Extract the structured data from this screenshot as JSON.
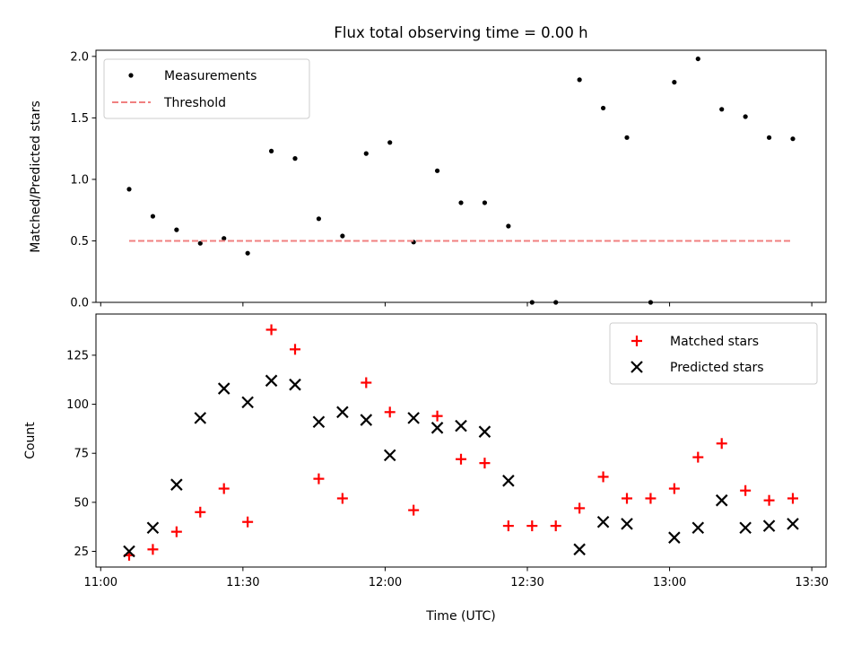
{
  "chart_data": {
    "title": "Flux total observing time = 0.00 h",
    "xlabel": "Time (UTC)",
    "x_tick_labels": [
      "11:00",
      "11:30",
      "12:00",
      "12:30",
      "13:00",
      "13:30"
    ],
    "x_tick_minutes": [
      0,
      30,
      60,
      90,
      120,
      150
    ],
    "xlim_minutes_after_1100": [
      -1,
      153
    ],
    "sample_times": [
      "11:06",
      "11:11",
      "11:16",
      "11:21",
      "11:26",
      "11:31",
      "11:36",
      "11:41",
      "11:46",
      "11:51",
      "11:56",
      "12:01",
      "12:06",
      "12:11",
      "12:16",
      "12:21",
      "12:26",
      "12:31",
      "12:36",
      "12:41",
      "12:46",
      "12:51",
      "12:56",
      "13:01",
      "13:06",
      "13:11",
      "13:16",
      "13:21",
      "13:26"
    ],
    "panels": [
      {
        "type": "scatter",
        "ylabel": "Matched/Predicted stars",
        "ylim": [
          0,
          2.05
        ],
        "yticks": [
          0.0,
          0.5,
          1.0,
          1.5,
          2.0
        ],
        "ytick_labels": [
          "0.0",
          "0.5",
          "1.0",
          "1.5",
          "2.0"
        ],
        "legend_position": "upper-left",
        "series": [
          {
            "name": "Measurements",
            "marker": "dot",
            "color": "#000000",
            "values": [
              0.92,
              0.7,
              0.59,
              0.48,
              0.52,
              0.4,
              1.23,
              1.17,
              0.68,
              0.54,
              1.21,
              1.3,
              0.49,
              1.07,
              0.81,
              0.81,
              0.62,
              0.0,
              0.0,
              1.81,
              1.58,
              1.34,
              0.0,
              1.79,
              1.98,
              1.57,
              1.51,
              1.34,
              1.33
            ]
          },
          {
            "name": "Threshold",
            "marker": "dashed-line",
            "color": "#f08080",
            "value": 0.5,
            "x_range": [
              "11:06",
              "13:26"
            ]
          }
        ]
      },
      {
        "type": "scatter",
        "ylabel": "Count",
        "ylim": [
          17,
          146
        ],
        "yticks": [
          25,
          50,
          75,
          100,
          125
        ],
        "ytick_labels": [
          "25",
          "50",
          "75",
          "100",
          "125"
        ],
        "legend_position": "upper-right",
        "series": [
          {
            "name": "Matched stars",
            "marker": "plus",
            "color": "#ff0000",
            "values": [
              23,
              26,
              35,
              45,
              57,
              40,
              138,
              128,
              62,
              52,
              111,
              96,
              46,
              94,
              72,
              70,
              38,
              38,
              38,
              47,
              63,
              52,
              52,
              57,
              73,
              80,
              56,
              51,
              52
            ]
          },
          {
            "name": "Predicted stars",
            "marker": "x",
            "color": "#000000",
            "values": [
              25,
              37,
              59,
              93,
              108,
              101,
              112,
              110,
              91,
              96,
              92,
              74,
              93,
              88,
              89,
              86,
              61,
              null,
              null,
              26,
              40,
              39,
              null,
              32,
              37,
              51,
              37,
              38,
              39
            ]
          }
        ]
      }
    ]
  }
}
